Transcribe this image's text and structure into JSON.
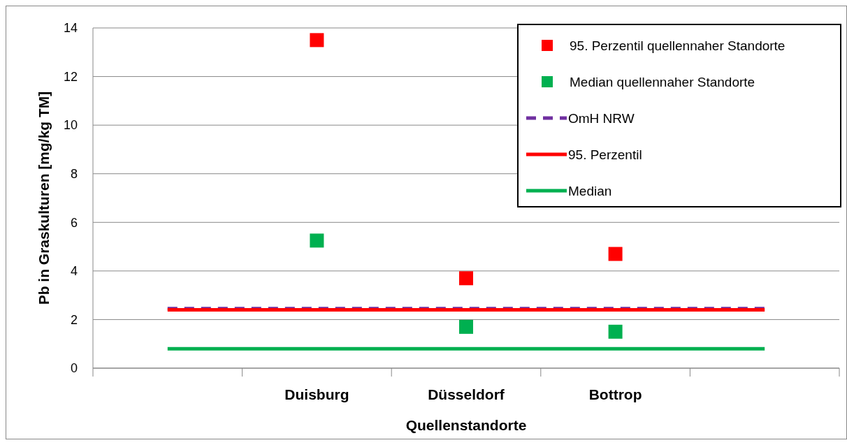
{
  "chart_data": {
    "type": "line",
    "xlabel": "Quellenstandorte",
    "ylabel": "Pb in Graskulturen [mg/kg TM]",
    "categories": [
      null,
      "Duisburg",
      "Düsseldorf",
      "Bottrop",
      null
    ],
    "series": [
      {
        "name": "95. Perzentil quellennaher Standorte",
        "type": "scatter",
        "color": "#ff0000",
        "marker": "square",
        "values": [
          null,
          13.5,
          3.7,
          4.7,
          null
        ]
      },
      {
        "name": "Median quellennaher Standorte",
        "type": "scatter",
        "color": "#00b050",
        "marker": "square",
        "values": [
          null,
          5.25,
          1.7,
          1.5,
          null
        ]
      },
      {
        "name": "OmH NRW",
        "type": "line",
        "color": "#7030a0",
        "line_style": "dashed",
        "values": [
          2.45,
          2.45,
          2.45,
          2.45,
          2.45
        ]
      },
      {
        "name": "95. Perzentil",
        "type": "line",
        "color": "#ff0000",
        "line_style": "solid",
        "values": [
          2.4,
          2.4,
          2.4,
          2.4,
          2.4
        ]
      },
      {
        "name": "Median",
        "type": "line",
        "color": "#00b050",
        "line_style": "solid",
        "values": [
          0.8,
          0.8,
          0.8,
          0.8,
          0.8
        ]
      }
    ],
    "ylim": [
      0,
      14
    ],
    "yticks": [
      0,
      2,
      4,
      6,
      8,
      10,
      12,
      14
    ],
    "grid": "y",
    "legend": "top right"
  }
}
